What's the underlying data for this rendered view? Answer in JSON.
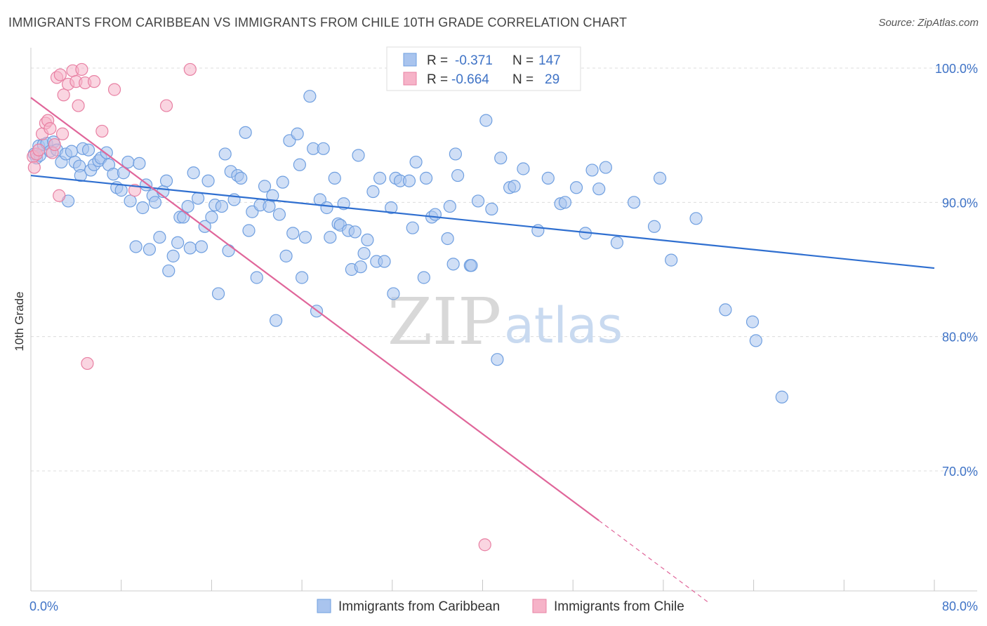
{
  "header": {
    "title": "IMMIGRANTS FROM CARIBBEAN VS IMMIGRANTS FROM CHILE 10TH GRADE CORRELATION CHART",
    "source": "Source: ZipAtlas.com"
  },
  "watermark": {
    "zip": "ZIP",
    "atlas": "atlas"
  },
  "legend": {
    "rows": [
      {
        "r_label": "R =",
        "r_value": "-0.371",
        "n_label": "N =",
        "n_value": "147",
        "color": "#a9c4ee"
      },
      {
        "r_label": "R =",
        "r_value": "-0.664",
        "n_label": "N =",
        "n_value": "29",
        "color": "#f6b3c8"
      }
    ]
  },
  "bottom_legend": [
    {
      "label": "Immigrants from Caribbean",
      "color": "#a9c4ee"
    },
    {
      "label": "Immigrants from Chile",
      "color": "#f6b3c8"
    }
  ],
  "chart_data": {
    "type": "scatter",
    "title": "IMMIGRANTS FROM CARIBBEAN VS IMMIGRANTS FROM CHILE 10TH GRADE CORRELATION CHART",
    "xlabel": "",
    "ylabel": "10th Grade",
    "xlim": [
      0,
      80
    ],
    "ylim": [
      61,
      101.5
    ],
    "x_tick_labels": [
      "0.0%",
      "80.0%"
    ],
    "y_ticks": [
      70,
      80,
      90,
      100
    ],
    "y_tick_labels": [
      "70.0%",
      "80.0%",
      "90.0%",
      "100.0%"
    ],
    "grid": true,
    "legend_position": "top-center",
    "series": [
      {
        "name": "Immigrants from Caribbean",
        "color": "#6f9fe0",
        "fill": "#a9c4ee",
        "trend": {
          "x": [
            0,
            80
          ],
          "y": [
            92.0,
            85.1
          ]
        },
        "points": [
          [
            0.3,
            93.6
          ],
          [
            0.5,
            93.3
          ],
          [
            0.7,
            94.2
          ],
          [
            0.8,
            93.5
          ],
          [
            1.1,
            94.3
          ],
          [
            1.4,
            94.4
          ],
          [
            1.7,
            93.8
          ],
          [
            2.0,
            94.5
          ],
          [
            2.3,
            93.9
          ],
          [
            2.7,
            93.0
          ],
          [
            3.1,
            93.6
          ],
          [
            3.3,
            90.1
          ],
          [
            3.6,
            93.8
          ],
          [
            3.9,
            93.0
          ],
          [
            4.3,
            92.7
          ],
          [
            4.4,
            92.0
          ],
          [
            4.6,
            94.0
          ],
          [
            5.1,
            93.9
          ],
          [
            5.3,
            92.4
          ],
          [
            5.6,
            92.8
          ],
          [
            6.0,
            93.1
          ],
          [
            6.2,
            93.3
          ],
          [
            6.7,
            93.7
          ],
          [
            6.9,
            92.8
          ],
          [
            7.3,
            92.1
          ],
          [
            7.6,
            91.1
          ],
          [
            8.0,
            90.9
          ],
          [
            8.2,
            92.2
          ],
          [
            8.6,
            93.0
          ],
          [
            8.8,
            90.1
          ],
          [
            9.3,
            86.7
          ],
          [
            9.6,
            92.9
          ],
          [
            9.9,
            89.6
          ],
          [
            10.2,
            91.3
          ],
          [
            10.5,
            86.5
          ],
          [
            10.8,
            90.5
          ],
          [
            11.0,
            90.0
          ],
          [
            11.4,
            87.4
          ],
          [
            11.7,
            90.8
          ],
          [
            12.0,
            91.6
          ],
          [
            12.2,
            84.9
          ],
          [
            12.6,
            86.0
          ],
          [
            13.0,
            87.0
          ],
          [
            13.2,
            88.9
          ],
          [
            13.5,
            88.9
          ],
          [
            13.9,
            89.7
          ],
          [
            14.1,
            86.6
          ],
          [
            14.4,
            92.2
          ],
          [
            14.8,
            90.3
          ],
          [
            15.1,
            86.7
          ],
          [
            15.4,
            88.2
          ],
          [
            15.7,
            91.6
          ],
          [
            16.0,
            88.9
          ],
          [
            16.3,
            89.8
          ],
          [
            16.6,
            83.2
          ],
          [
            16.9,
            89.7
          ],
          [
            17.2,
            93.6
          ],
          [
            17.5,
            86.4
          ],
          [
            17.7,
            92.3
          ],
          [
            18.0,
            90.2
          ],
          [
            18.3,
            92.0
          ],
          [
            18.6,
            91.8
          ],
          [
            19.0,
            95.2
          ],
          [
            19.3,
            87.9
          ],
          [
            19.6,
            89.3
          ],
          [
            20.0,
            84.4
          ],
          [
            20.3,
            89.8
          ],
          [
            20.7,
            91.2
          ],
          [
            21.1,
            89.7
          ],
          [
            21.4,
            90.5
          ],
          [
            21.7,
            81.2
          ],
          [
            22.0,
            89.1
          ],
          [
            22.3,
            91.5
          ],
          [
            22.6,
            86.0
          ],
          [
            22.9,
            94.6
          ],
          [
            23.2,
            87.7
          ],
          [
            23.6,
            95.1
          ],
          [
            23.8,
            92.8
          ],
          [
            24.0,
            84.4
          ],
          [
            24.3,
            87.4
          ],
          [
            24.7,
            97.9
          ],
          [
            25.0,
            94.0
          ],
          [
            25.3,
            81.9
          ],
          [
            25.6,
            90.2
          ],
          [
            25.9,
            94.0
          ],
          [
            26.2,
            89.6
          ],
          [
            26.5,
            87.4
          ],
          [
            26.9,
            91.8
          ],
          [
            27.2,
            88.4
          ],
          [
            27.4,
            88.3
          ],
          [
            27.7,
            89.9
          ],
          [
            28.1,
            87.9
          ],
          [
            28.4,
            85.0
          ],
          [
            28.7,
            87.8
          ],
          [
            29.0,
            93.5
          ],
          [
            29.2,
            85.2
          ],
          [
            29.5,
            86.2
          ],
          [
            29.8,
            87.2
          ],
          [
            30.3,
            90.8
          ],
          [
            30.6,
            85.6
          ],
          [
            30.9,
            91.8
          ],
          [
            31.3,
            85.6
          ],
          [
            31.9,
            89.6
          ],
          [
            32.1,
            83.2
          ],
          [
            32.3,
            91.8
          ],
          [
            32.7,
            91.6
          ],
          [
            33.5,
            91.6
          ],
          [
            33.8,
            88.1
          ],
          [
            34.1,
            93.0
          ],
          [
            34.8,
            84.4
          ],
          [
            35.0,
            91.8
          ],
          [
            35.5,
            88.9
          ],
          [
            35.8,
            89.1
          ],
          [
            36.9,
            87.3
          ],
          [
            37.1,
            89.7
          ],
          [
            37.4,
            85.4
          ],
          [
            37.6,
            93.6
          ],
          [
            37.8,
            92.0
          ],
          [
            38.9,
            85.3
          ],
          [
            39.0,
            85.3
          ],
          [
            39.6,
            90.1
          ],
          [
            40.3,
            96.1
          ],
          [
            40.8,
            89.5
          ],
          [
            41.3,
            78.3
          ],
          [
            41.6,
            93.3
          ],
          [
            42.4,
            91.1
          ],
          [
            42.8,
            91.2
          ],
          [
            43.6,
            92.5
          ],
          [
            44.9,
            87.9
          ],
          [
            45.8,
            91.8
          ],
          [
            46.9,
            89.9
          ],
          [
            47.3,
            90.0
          ],
          [
            48.3,
            91.1
          ],
          [
            49.1,
            87.7
          ],
          [
            49.7,
            92.4
          ],
          [
            50.3,
            91.0
          ],
          [
            50.9,
            92.6
          ],
          [
            51.9,
            87.0
          ],
          [
            53.4,
            90.0
          ],
          [
            55.2,
            88.2
          ],
          [
            55.7,
            91.8
          ],
          [
            56.7,
            85.7
          ],
          [
            58.9,
            88.8
          ],
          [
            61.5,
            82.0
          ],
          [
            63.9,
            81.1
          ],
          [
            64.2,
            79.7
          ],
          [
            66.5,
            75.5
          ]
        ]
      },
      {
        "name": "Immigrants from Chile",
        "color": "#e880a3",
        "fill": "#f6b3c8",
        "trend": {
          "x": [
            0,
            50.3
          ],
          "y": [
            97.8,
            66.3
          ],
          "dashed_to": {
            "x": 60,
            "y": 60.2
          }
        },
        "points": [
          [
            0.2,
            93.4
          ],
          [
            0.3,
            92.6
          ],
          [
            0.5,
            93.6
          ],
          [
            0.7,
            93.9
          ],
          [
            1.0,
            95.1
          ],
          [
            1.3,
            95.9
          ],
          [
            1.5,
            96.1
          ],
          [
            1.7,
            95.5
          ],
          [
            1.9,
            93.7
          ],
          [
            2.1,
            94.3
          ],
          [
            2.3,
            99.3
          ],
          [
            2.6,
            99.5
          ],
          [
            2.9,
            98.0
          ],
          [
            3.3,
            98.8
          ],
          [
            3.7,
            99.8
          ],
          [
            4.0,
            99.0
          ],
          [
            4.2,
            97.2
          ],
          [
            4.5,
            99.9
          ],
          [
            4.8,
            98.9
          ],
          [
            5.0,
            78.0
          ],
          [
            5.6,
            99.0
          ],
          [
            6.3,
            95.3
          ],
          [
            7.4,
            98.4
          ],
          [
            9.2,
            90.9
          ],
          [
            12.0,
            97.2
          ],
          [
            14.1,
            99.9
          ],
          [
            2.5,
            90.5
          ],
          [
            40.2,
            64.5
          ],
          [
            2.8,
            95.1
          ]
        ]
      }
    ]
  }
}
